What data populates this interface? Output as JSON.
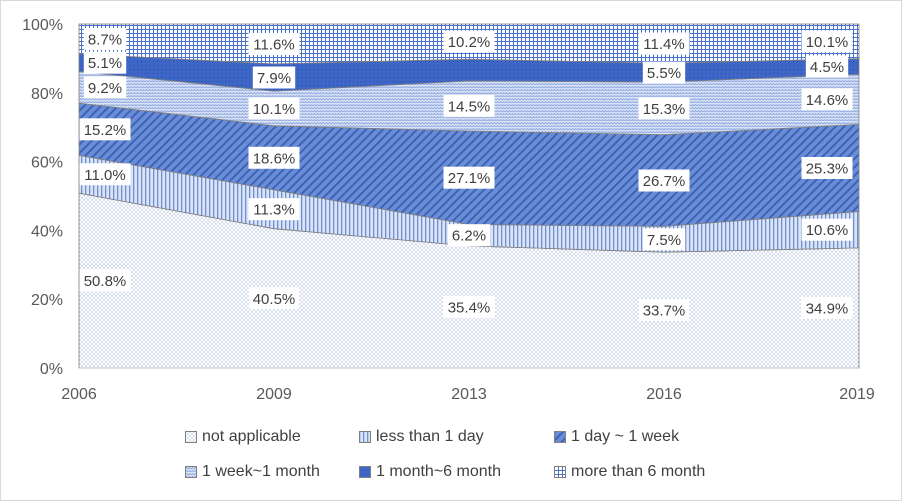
{
  "chart_data": {
    "type": "area",
    "stacked": true,
    "x": [
      "2006",
      "2009",
      "2013",
      "2016",
      "2019"
    ],
    "ylim": [
      0,
      100
    ],
    "yticks": [
      "0%",
      "20%",
      "40%",
      "60%",
      "80%",
      "100%"
    ],
    "series": [
      {
        "name": "not applicable",
        "values": [
          50.8,
          40.5,
          35.4,
          33.7,
          34.9
        ],
        "labels": [
          "50.8%",
          "40.5%",
          "35.4%",
          "33.7%",
          "34.9%"
        ],
        "color": "#e4e9f5"
      },
      {
        "name": "less than 1 day",
        "values": [
          11.0,
          11.3,
          6.2,
          7.5,
          10.6
        ],
        "labels": [
          "11.0%",
          "11.3%",
          "6.2%",
          "7.5%",
          "10.6%"
        ],
        "color": "#c5d3f0"
      },
      {
        "name": "1 day ~ 1 week",
        "values": [
          15.2,
          18.6,
          27.1,
          26.7,
          25.3
        ],
        "labels": [
          "15.2%",
          "18.6%",
          "27.1%",
          "26.7%",
          "25.3%"
        ],
        "color": "#5f86d2"
      },
      {
        "name": "1 week~1 month",
        "values": [
          9.2,
          10.1,
          14.5,
          15.3,
          14.6
        ],
        "labels": [
          "9.2%",
          "10.1%",
          "14.5%",
          "15.3%",
          "14.6%"
        ],
        "color": "#b7c8ec"
      },
      {
        "name": "1 month~6 month",
        "values": [
          5.1,
          7.9,
          6.3,
          5.5,
          4.5
        ],
        "labels": [
          "5.1%",
          "7.9%",
          "",
          "5.5%",
          "4.5%"
        ],
        "color": "#3a63c2"
      },
      {
        "name": "more than 6 month",
        "values": [
          8.7,
          11.6,
          10.2,
          11.4,
          10.1
        ],
        "labels": [
          "8.7%",
          "11.6%",
          "10.2%",
          "11.4%",
          "10.1%"
        ],
        "color": "#7f9ed8"
      }
    ],
    "legend_position": "bottom",
    "grid": false
  }
}
